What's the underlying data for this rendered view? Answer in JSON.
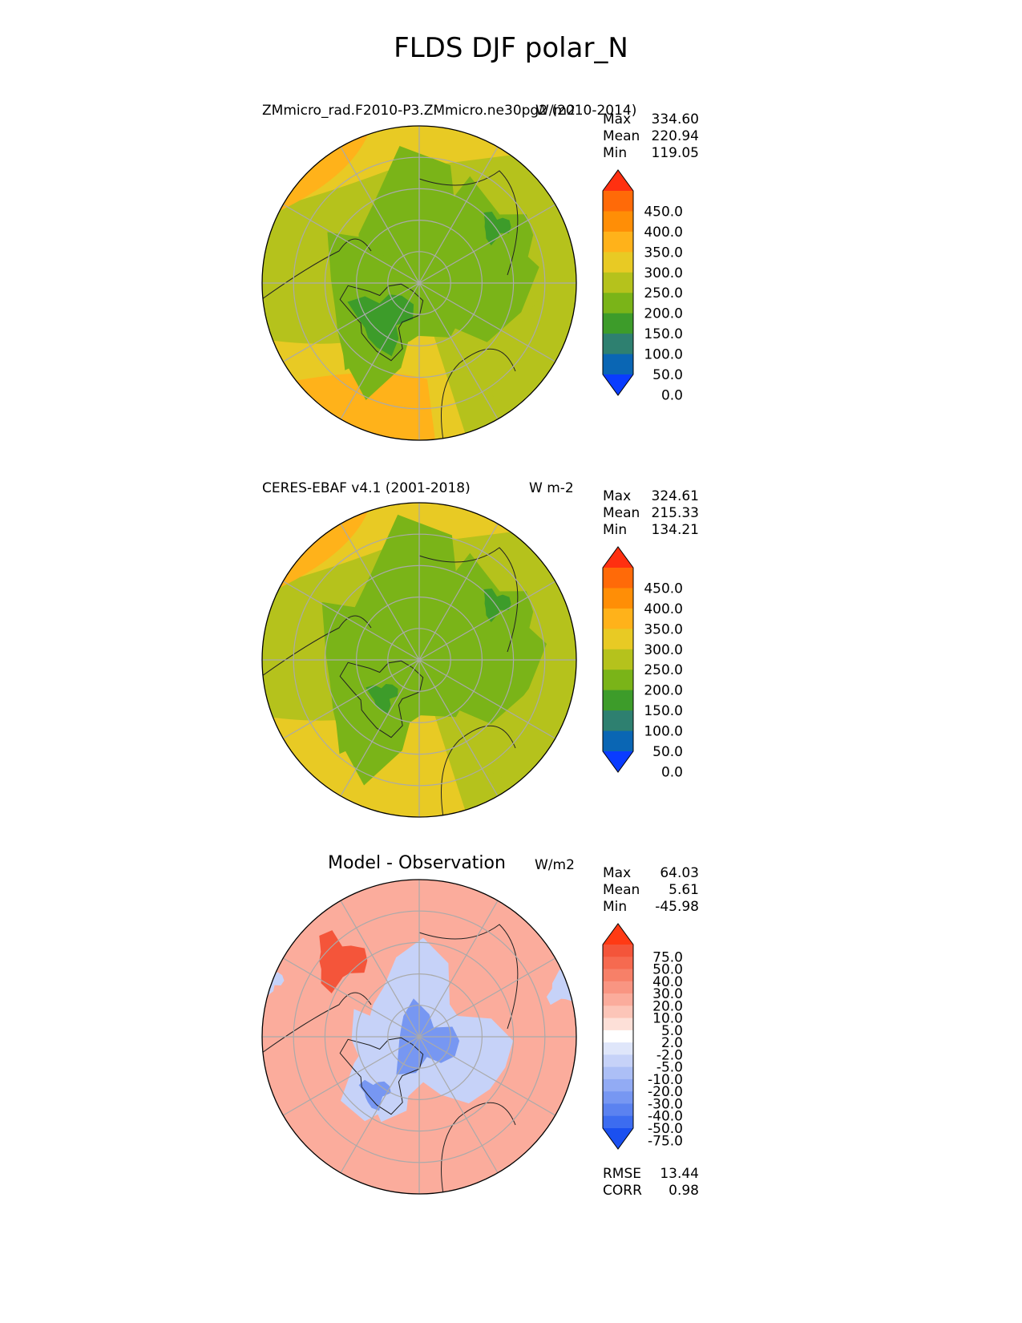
{
  "title": "FLDS DJF polar_N",
  "panels": [
    {
      "left_title": "ZMmicro_rad.F2010-P3.ZMmicro.ne30pg2 (2010-2014)",
      "units": "W/m2",
      "stats": [
        {
          "label": "Max",
          "value": "334.60"
        },
        {
          "label": "Mean",
          "value": "220.94"
        },
        {
          "label": "Min",
          "value": "119.05"
        }
      ]
    },
    {
      "left_title": "CERES-EBAF v4.1 (2001-2018)",
      "units": "W m-2",
      "stats": [
        {
          "label": "Max",
          "value": "324.61"
        },
        {
          "label": "Mean",
          "value": "215.33"
        },
        {
          "label": "Min",
          "value": "134.21"
        }
      ]
    },
    {
      "left_title": "Model - Observation",
      "units": "W/m2",
      "stats": [
        {
          "label": "Max",
          "value": "64.03"
        },
        {
          "label": "Mean",
          "value": "5.61"
        },
        {
          "label": "Min",
          "value": "-45.98"
        }
      ],
      "extra_stats": [
        {
          "label": "RMSE",
          "value": "13.44"
        },
        {
          "label": "CORR",
          "value": "0.98"
        }
      ]
    }
  ],
  "colorbar_main": {
    "ticks": [
      "450.0",
      "400.0",
      "350.0",
      "300.0",
      "250.0",
      "200.0",
      "150.0",
      "100.0",
      "50.0",
      "0.0"
    ],
    "colors_top_to_bottom": [
      "#ff3010",
      "#ff6a08",
      "#ff8e06",
      "#ffb21a",
      "#e8ca24",
      "#b5c21c",
      "#7ab418",
      "#3d9c2a",
      "#2e8070",
      "#0a66b4",
      "#0a3cff"
    ]
  },
  "colorbar_diff": {
    "ticks": [
      "75.0",
      "50.0",
      "40.0",
      "30.0",
      "20.0",
      "10.0",
      "5.0",
      "2.0",
      "-2.0",
      "-5.0",
      "-10.0",
      "-20.0",
      "-30.0",
      "-40.0",
      "-50.0",
      "-75.0"
    ],
    "colors_top_to_bottom": [
      "#ff3a14",
      "#f4553a",
      "#f66a50",
      "#f78068",
      "#f99582",
      "#fbac9c",
      "#fcc5b8",
      "#fde0d8",
      "#ffffff",
      "#dfe6fa",
      "#c6d2f8",
      "#acbff6",
      "#92abf4",
      "#7797f2",
      "#5b82f0",
      "#3c6cf0",
      "#1a50f0"
    ]
  },
  "map_colors": {
    "ocean_main": "#b5c21c",
    "arctic_main": "#7ab418",
    "warm_main": "#e8ca24",
    "warmer_main": "#ffb21a",
    "dark_main": "#3d9c2a",
    "diff_pos": "#fbac9c",
    "diff_pos_strong": "#f4553a",
    "diff_neg": "#7797f2",
    "diff_neg_light": "#c6d2f8"
  }
}
